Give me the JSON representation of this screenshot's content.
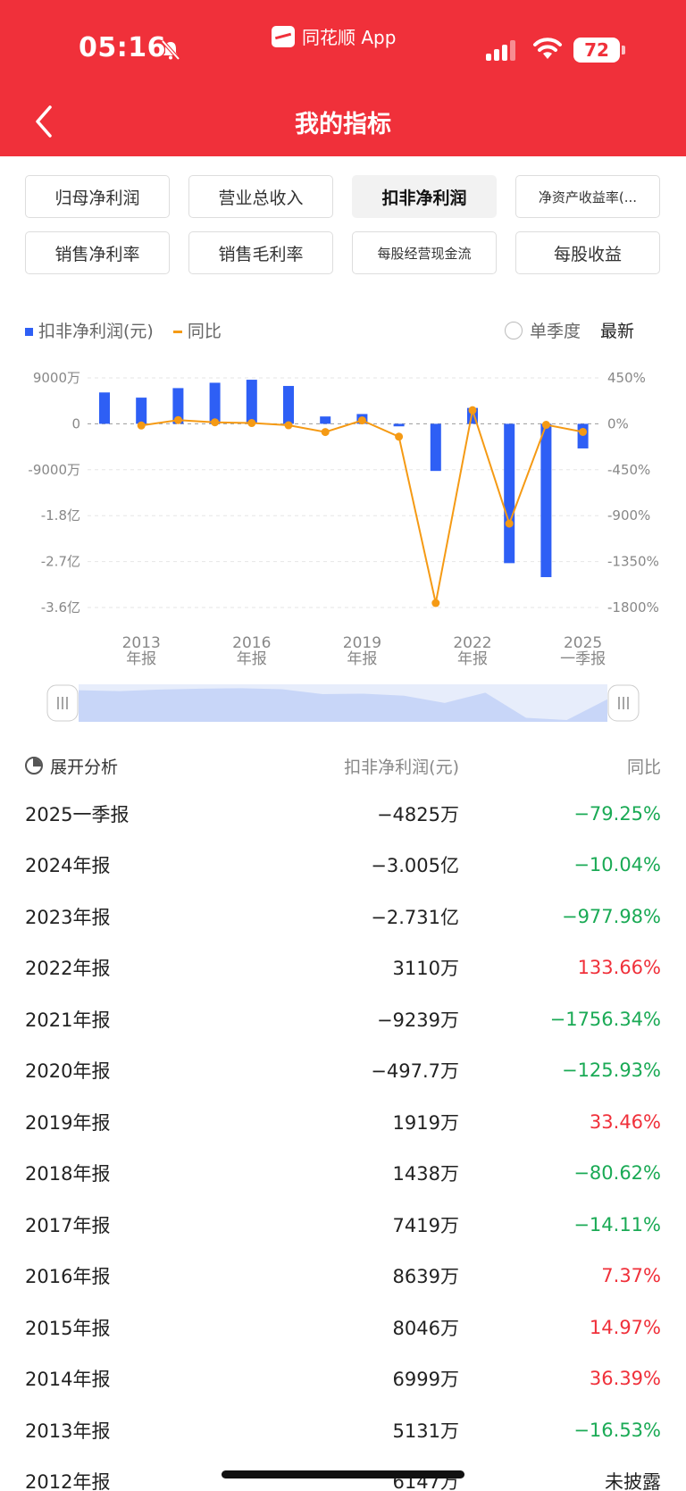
{
  "status_bar": {
    "time": "05:16",
    "app_name": "同花顺 App",
    "battery": "72"
  },
  "header": {
    "title": "我的指标",
    "back_icon": "chevron-left-icon"
  },
  "tabs": [
    {
      "label": "归母净利润",
      "active": false
    },
    {
      "label": "营业总收入",
      "active": false
    },
    {
      "label": "扣非净利润",
      "active": true
    },
    {
      "label": "净资产收益率(...",
      "active": false
    },
    {
      "label": "销售净利率",
      "active": false
    },
    {
      "label": "销售毛利率",
      "active": false
    },
    {
      "label": "每股经营现金流",
      "active": false
    },
    {
      "label": "每股收益",
      "active": false
    }
  ],
  "legend": {
    "bar_label": "扣非净利润(元)",
    "line_label": "同比",
    "single_quarter": "单季度",
    "latest": "最新"
  },
  "colors": {
    "header_red": "#f0303a",
    "bar_blue": "#2e5ff5",
    "line_orange": "#f59a14",
    "up_red": "#f0303a",
    "down_green": "#1aaa55"
  },
  "chart_data": {
    "type": "bar",
    "categories": [
      "2012年报",
      "2013年报",
      "2014年报",
      "2015年报",
      "2016年报",
      "2017年报",
      "2018年报",
      "2019年报",
      "2020年报",
      "2021年报",
      "2022年报",
      "2023年报",
      "2024年报",
      "2025一季报"
    ],
    "series": [
      {
        "name": "扣非净利润(元)",
        "axis": "left",
        "unit": "万",
        "values": [
          6147,
          5131,
          6999,
          8046,
          8639,
          7419,
          1438,
          1919,
          -497.7,
          -9239,
          3110,
          -27310,
          -30050,
          -4825
        ]
      },
      {
        "name": "同比",
        "axis": "right",
        "type": "line",
        "unit": "%",
        "values": [
          null,
          -16.53,
          36.39,
          14.97,
          7.37,
          -14.11,
          -80.62,
          33.46,
          -125.93,
          -1756.34,
          133.66,
          -977.98,
          -10.04,
          -79.25
        ]
      }
    ],
    "left_ticks": [
      "9000万",
      "0",
      "-9000万",
      "-1.8亿",
      "-2.7亿",
      "-3.6亿"
    ],
    "right_ticks": [
      "450%",
      "0%",
      "-450%",
      "-900%",
      "-1350%",
      "-1800%"
    ],
    "ylim_left": [
      -36000,
      9000
    ],
    "ylim_right": [
      -1800,
      450
    ],
    "x_labels": [
      {
        "year": "2013",
        "kind": "年报",
        "index": 1
      },
      {
        "year": "2016",
        "kind": "年报",
        "index": 4
      },
      {
        "year": "2019",
        "kind": "年报",
        "index": 7
      },
      {
        "year": "2022",
        "kind": "年报",
        "index": 10
      },
      {
        "year": "2025",
        "kind": "一季报",
        "index": 13
      }
    ],
    "grid": true
  },
  "table": {
    "header": {
      "analysis": "展开分析",
      "value_col": "扣非净利润(元)",
      "yoy_col": "同比"
    },
    "rows": [
      {
        "period": "2025一季报",
        "value": "−4825万",
        "yoy": "−79.25%",
        "dir": "down"
      },
      {
        "period": "2024年报",
        "value": "−3.005亿",
        "yoy": "−10.04%",
        "dir": "down"
      },
      {
        "period": "2023年报",
        "value": "−2.731亿",
        "yoy": "−977.98%",
        "dir": "down"
      },
      {
        "period": "2022年报",
        "value": "3110万",
        "yoy": "133.66%",
        "dir": "up"
      },
      {
        "period": "2021年报",
        "value": "−9239万",
        "yoy": "−1756.34%",
        "dir": "down"
      },
      {
        "period": "2020年报",
        "value": "−497.7万",
        "yoy": "−125.93%",
        "dir": "down"
      },
      {
        "period": "2019年报",
        "value": "1919万",
        "yoy": "33.46%",
        "dir": "up"
      },
      {
        "period": "2018年报",
        "value": "1438万",
        "yoy": "−80.62%",
        "dir": "down"
      },
      {
        "period": "2017年报",
        "value": "7419万",
        "yoy": "−14.11%",
        "dir": "down"
      },
      {
        "period": "2016年报",
        "value": "8639万",
        "yoy": "7.37%",
        "dir": "up"
      },
      {
        "period": "2015年报",
        "value": "8046万",
        "yoy": "14.97%",
        "dir": "up"
      },
      {
        "period": "2014年报",
        "value": "6999万",
        "yoy": "36.39%",
        "dir": "up"
      },
      {
        "period": "2013年报",
        "value": "5131万",
        "yoy": "−16.53%",
        "dir": "down"
      },
      {
        "period": "2012年报",
        "value": "6147万",
        "yoy": "未披露",
        "dir": "none"
      }
    ]
  }
}
